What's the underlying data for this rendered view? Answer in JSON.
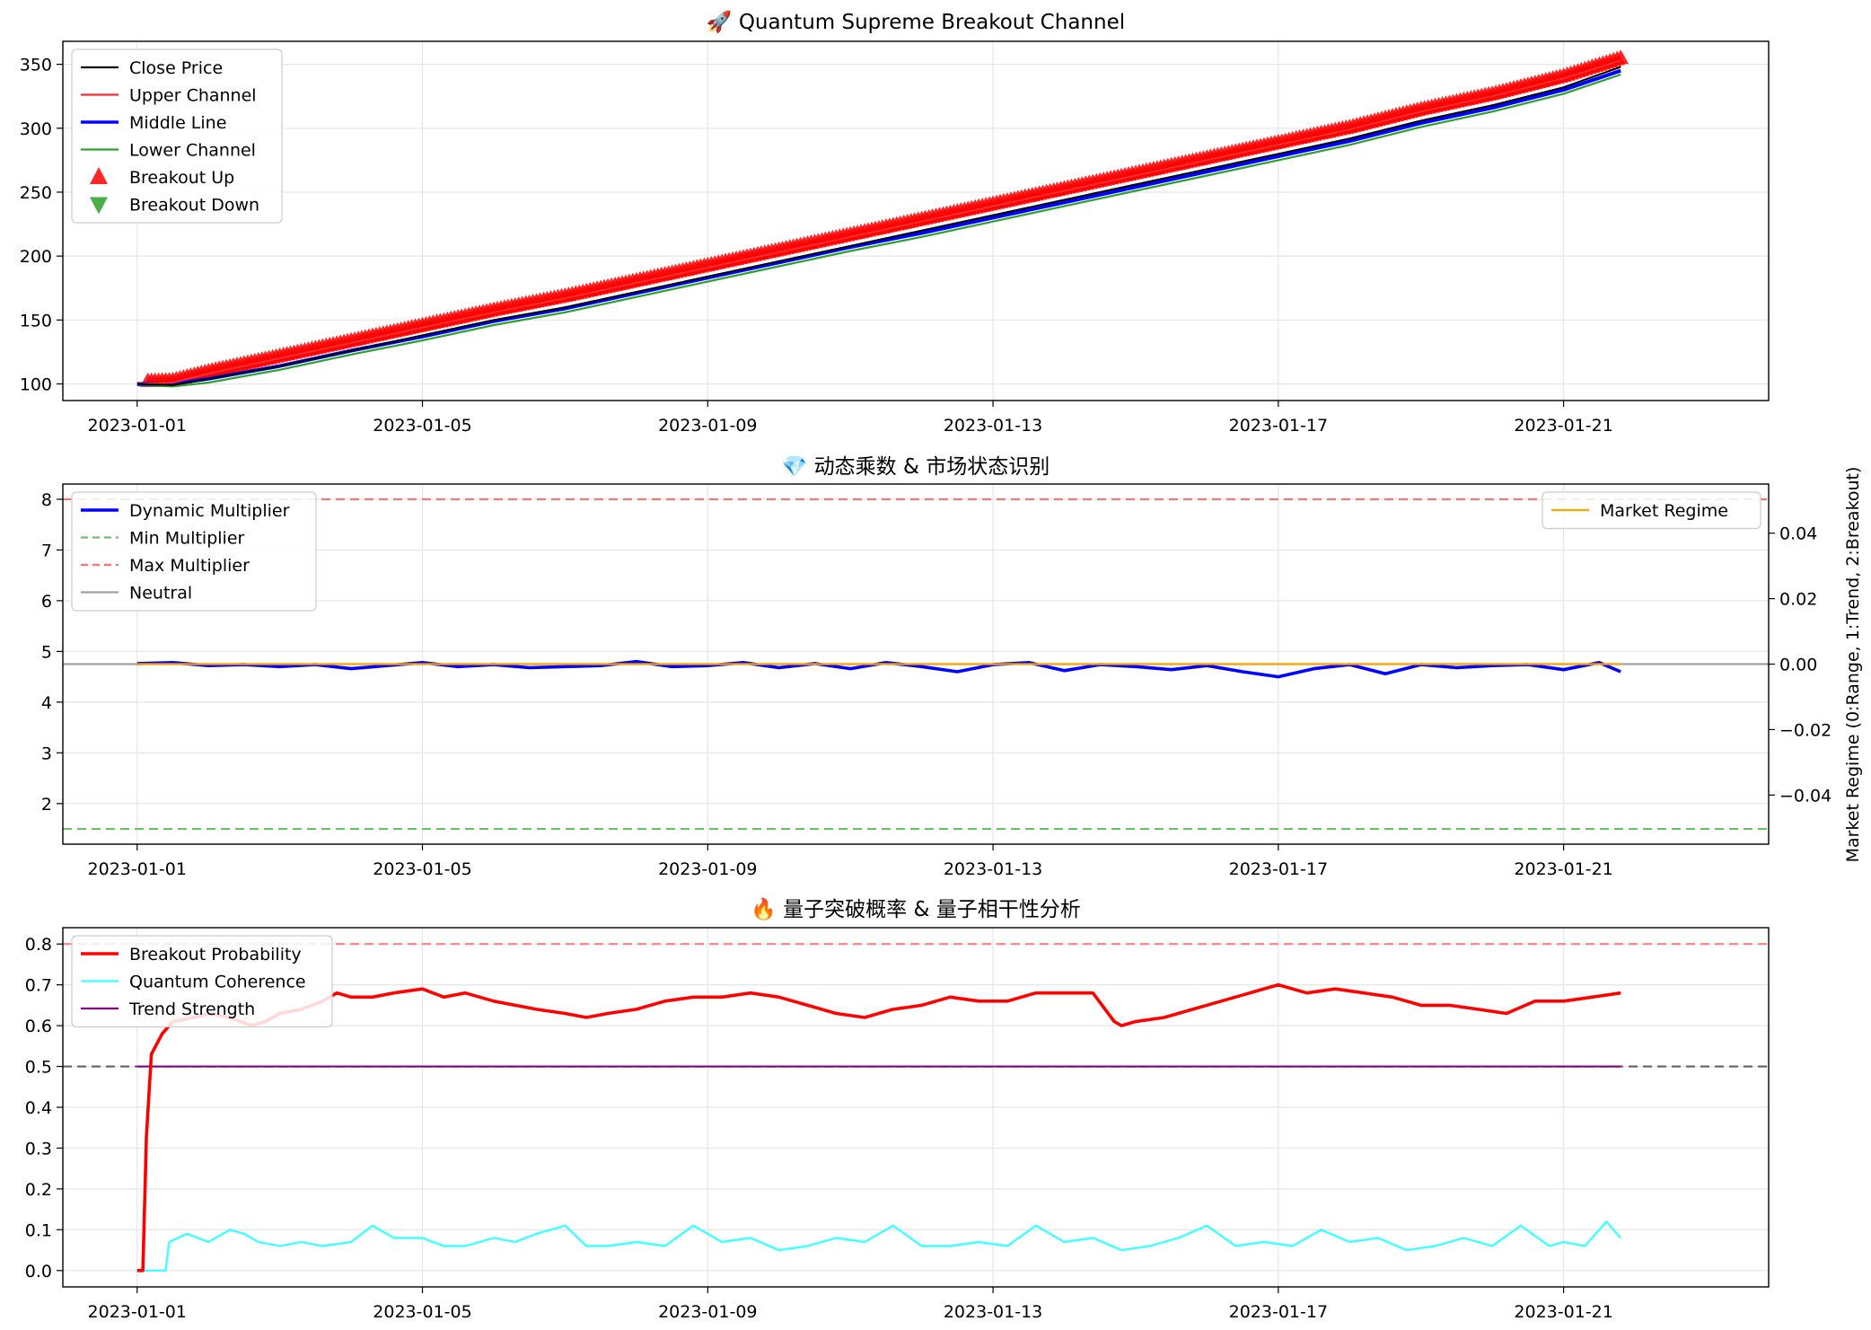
{
  "chart_data": [
    {
      "type": "line",
      "title": "🚀 Quantum Supreme Breakout Channel",
      "x_ticks": [
        "2023-01-01",
        "2023-01-05",
        "2023-01-09",
        "2023-01-13",
        "2023-01-17",
        "2023-01-21"
      ],
      "x_range": [
        "2022-12-30T23:00",
        "2023-01-23T21:00"
      ],
      "ylim": [
        87,
        368
      ],
      "y_ticks": [
        "100",
        "150",
        "200",
        "250",
        "300",
        "350"
      ],
      "grid": true,
      "legend_position": "top-left",
      "legend": [
        "Close Price",
        "Upper Channel",
        "Middle Line",
        "Lower Channel",
        "Breakout Up",
        "Breakout Down"
      ],
      "series": [
        {
          "name": "Close Price",
          "color": "#000000",
          "x_days": [
            0,
            0.5,
            1,
            2,
            3,
            4,
            5,
            6,
            7,
            8,
            9,
            10,
            11,
            12,
            13,
            14,
            15,
            16,
            17,
            18,
            19,
            20,
            20.8
          ],
          "values": [
            100,
            99,
            104,
            114,
            126,
            138,
            150,
            160,
            172,
            184,
            196,
            208,
            220,
            232,
            244,
            256,
            268,
            280,
            292,
            306,
            318,
            332,
            348
          ]
        },
        {
          "name": "Upper Channel",
          "color": "#f03030",
          "x_days": [
            0,
            0.5,
            1,
            2,
            3,
            4,
            5,
            6,
            7,
            8,
            9,
            10,
            11,
            12,
            13,
            14,
            15,
            16,
            17,
            18,
            19,
            20,
            20.8
          ],
          "values": [
            100,
            101,
            108,
            120,
            132,
            144,
            156,
            167,
            179,
            191,
            203,
            215,
            227,
            239,
            251,
            263,
            275,
            287,
            299,
            313,
            325,
            339,
            353
          ]
        },
        {
          "name": "Middle Line",
          "color": "#0000ff",
          "x_days": [
            0,
            0.5,
            1,
            2,
            3,
            4,
            5,
            6,
            7,
            8,
            9,
            10,
            11,
            12,
            13,
            14,
            15,
            16,
            17,
            18,
            19,
            20,
            20.8
          ],
          "values": [
            100,
            100,
            104,
            114,
            126,
            137,
            149,
            159,
            171,
            183,
            195,
            207,
            218,
            230,
            242,
            254,
            266,
            278,
            290,
            304,
            316,
            330,
            345
          ]
        },
        {
          "name": "Lower Channel",
          "color": "#2ca02c",
          "x_days": [
            0,
            0.5,
            1,
            2,
            3,
            4,
            5,
            6,
            7,
            8,
            9,
            10,
            11,
            12,
            13,
            14,
            15,
            16,
            17,
            18,
            19,
            20,
            20.8
          ],
          "values": [
            99,
            98,
            101,
            111,
            123,
            134,
            146,
            156,
            168,
            180,
            192,
            204,
            215,
            227,
            239,
            251,
            263,
            275,
            287,
            301,
            313,
            327,
            342
          ]
        }
      ],
      "breakout_up": {
        "name": "Breakout Up",
        "color": "#ff0000",
        "x_days_range": [
          0.15,
          20.85
        ]
      },
      "breakout_down": {
        "name": "Breakout Down",
        "color": "#2ca02c"
      }
    },
    {
      "type": "line",
      "title": "💎 动态乘数 & 市场状态识别",
      "x_ticks": [
        "2023-01-01",
        "2023-01-05",
        "2023-01-09",
        "2023-01-13",
        "2023-01-17",
        "2023-01-21"
      ],
      "ylim": [
        1.2,
        8.3
      ],
      "y_ticks": [
        "2",
        "3",
        "4",
        "5",
        "6",
        "7",
        "8"
      ],
      "y2_label": "Market Regime (0:Range, 1:Trend, 2:Breakout)",
      "y2_ticks": [
        "0.04",
        "0.02",
        "0.00",
        "−0.02",
        "−0.04"
      ],
      "grid": true,
      "legend_position": "top-left",
      "legend": [
        "Dynamic Multiplier",
        "Min Multiplier",
        "Max Multiplier",
        "Neutral"
      ],
      "legend2": [
        "Market Regime"
      ],
      "hlines": [
        {
          "name": "Min Multiplier",
          "y": 1.5,
          "color": "#6cbf6c"
        },
        {
          "name": "Max Multiplier",
          "y": 8.0,
          "color": "#ff7070"
        },
        {
          "name": "Neutral",
          "y": 4.75,
          "color": "#a0a0a0"
        }
      ],
      "series": [
        {
          "name": "Dynamic Multiplier",
          "color": "#0000ff",
          "x_days": [
            0,
            0.5,
            1,
            1.5,
            2,
            2.5,
            3,
            3.5,
            4,
            4.5,
            5,
            5.5,
            6,
            6.5,
            7,
            7.5,
            8,
            8.5,
            9,
            9.5,
            10,
            10.5,
            11,
            11.5,
            12,
            12.5,
            13,
            13.5,
            14,
            14.5,
            15,
            15.5,
            16,
            16.5,
            17,
            17.5,
            18,
            18.5,
            19,
            19.5,
            20,
            20.5,
            20.8
          ],
          "values": [
            4.76,
            4.78,
            4.72,
            4.74,
            4.7,
            4.74,
            4.66,
            4.72,
            4.78,
            4.7,
            4.74,
            4.68,
            4.7,
            4.72,
            4.8,
            4.7,
            4.72,
            4.78,
            4.68,
            4.76,
            4.66,
            4.78,
            4.7,
            4.6,
            4.74,
            4.78,
            4.62,
            4.74,
            4.7,
            4.64,
            4.72,
            4.6,
            4.5,
            4.66,
            4.74,
            4.56,
            4.74,
            4.68,
            4.72,
            4.74,
            4.64,
            4.78,
            4.6
          ]
        },
        {
          "name": "Market Regime",
          "color": "#ffa500",
          "regime_value": 0.0
        }
      ]
    },
    {
      "type": "line",
      "title": "🔥 量子突破概率 & 量子相干性分析",
      "x_ticks": [
        "2023-01-01",
        "2023-01-05",
        "2023-01-09",
        "2023-01-13",
        "2023-01-17",
        "2023-01-21"
      ],
      "ylim": [
        -0.04,
        0.84
      ],
      "y_ticks": [
        "0.0",
        "0.1",
        "0.2",
        "0.3",
        "0.4",
        "0.5",
        "0.6",
        "0.7",
        "0.8"
      ],
      "grid": true,
      "legend_position": "top-left",
      "legend": [
        "Breakout Probability",
        "Quantum Coherence",
        "Trend Strength"
      ],
      "hlines": [
        {
          "y": 0.8,
          "color": "#ff8080"
        },
        {
          "y": 0.5,
          "color": "#606060"
        }
      ],
      "series": [
        {
          "name": "Breakout Probability",
          "color": "#ff0000",
          "x_days": [
            0,
            0.08,
            0.13,
            0.2,
            0.35,
            0.5,
            0.8,
            1,
            1.3,
            1.6,
            1.8,
            2,
            2.3,
            2.6,
            2.8,
            3,
            3.3,
            3.6,
            4,
            4.3,
            4.6,
            5,
            5.3,
            5.6,
            6,
            6.3,
            6.6,
            7,
            7.4,
            7.8,
            8.2,
            8.6,
            9,
            9.4,
            9.8,
            10.2,
            10.6,
            11,
            11.4,
            11.8,
            12.2,
            12.6,
            13,
            13.4,
            13.7,
            13.8,
            14,
            14.4,
            14.8,
            15.2,
            15.6,
            16,
            16.4,
            16.8,
            17.2,
            17.6,
            18,
            18.4,
            18.8,
            19.2,
            19.6,
            20,
            20.4,
            20.8
          ],
          "values": [
            0.0,
            0.0,
            0.33,
            0.53,
            0.58,
            0.61,
            0.62,
            0.63,
            0.62,
            0.6,
            0.61,
            0.63,
            0.64,
            0.66,
            0.68,
            0.67,
            0.67,
            0.68,
            0.69,
            0.67,
            0.68,
            0.66,
            0.65,
            0.64,
            0.63,
            0.62,
            0.63,
            0.64,
            0.66,
            0.67,
            0.67,
            0.68,
            0.67,
            0.65,
            0.63,
            0.62,
            0.64,
            0.65,
            0.67,
            0.66,
            0.66,
            0.68,
            0.68,
            0.68,
            0.61,
            0.6,
            0.61,
            0.62,
            0.64,
            0.66,
            0.68,
            0.7,
            0.68,
            0.69,
            0.68,
            0.67,
            0.65,
            0.65,
            0.64,
            0.63,
            0.66,
            0.66,
            0.67,
            0.68
          ]
        },
        {
          "name": "Quantum Coherence",
          "color": "#40ffff",
          "x_days": [
            0,
            0.4,
            0.45,
            0.7,
            1,
            1.3,
            1.5,
            1.7,
            2,
            2.3,
            2.6,
            3,
            3.3,
            3.6,
            4,
            4.3,
            4.6,
            5,
            5.3,
            5.6,
            6,
            6.3,
            6.6,
            7,
            7.4,
            7.8,
            8.2,
            8.6,
            9,
            9.4,
            9.8,
            10.2,
            10.6,
            11,
            11.4,
            11.8,
            12.2,
            12.6,
            13,
            13.4,
            13.8,
            14.2,
            14.6,
            15,
            15.4,
            15.8,
            16.2,
            16.6,
            17,
            17.4,
            17.8,
            18.2,
            18.6,
            19,
            19.4,
            19.8,
            20,
            20.3,
            20.6,
            20.8
          ],
          "values": [
            0.0,
            0.0,
            0.07,
            0.09,
            0.07,
            0.1,
            0.09,
            0.07,
            0.06,
            0.07,
            0.06,
            0.07,
            0.11,
            0.08,
            0.08,
            0.06,
            0.06,
            0.08,
            0.07,
            0.09,
            0.11,
            0.06,
            0.06,
            0.07,
            0.06,
            0.11,
            0.07,
            0.08,
            0.05,
            0.06,
            0.08,
            0.07,
            0.11,
            0.06,
            0.06,
            0.07,
            0.06,
            0.11,
            0.07,
            0.08,
            0.05,
            0.06,
            0.08,
            0.11,
            0.06,
            0.07,
            0.06,
            0.1,
            0.07,
            0.08,
            0.05,
            0.06,
            0.08,
            0.06,
            0.11,
            0.06,
            0.07,
            0.06,
            0.12,
            0.08
          ]
        },
        {
          "name": "Trend Strength",
          "color": "#800080",
          "constant": 0.5
        }
      ]
    }
  ]
}
